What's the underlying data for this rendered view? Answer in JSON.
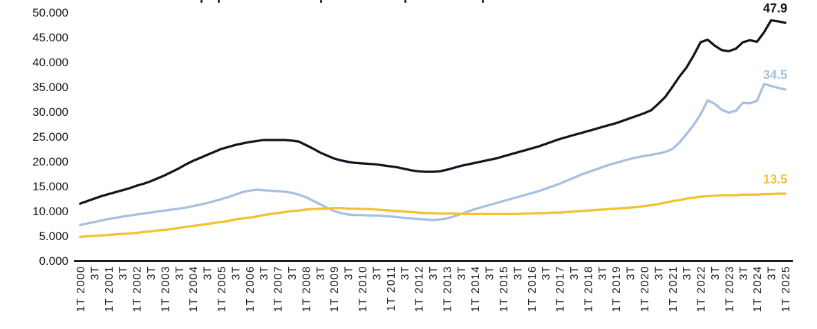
{
  "chart_data": {
    "type": "line",
    "title": "",
    "grid": false,
    "legend": "none",
    "unit_note": "y values in thousands, quarterly points 1T 2000 - 1T 2025",
    "y_axis": {
      "min": 0,
      "max": 50000,
      "tick_step": 5000,
      "tick_labels": [
        "50.000",
        "45.000",
        "40.000",
        "35.000",
        "30.000",
        "25.000",
        "20.000",
        "15.000",
        "10.000",
        "5.000",
        "0.000"
      ]
    },
    "x_axis": {
      "quarters_per_tick": 2,
      "tick_labels": [
        "1T 2000",
        "3T",
        "1T 2001",
        "3T",
        "1T 2002",
        "3T",
        "1T 2003",
        "3T",
        "1T 2004",
        "3T",
        "1T 2005",
        "3T",
        "1T 2006",
        "3T",
        "1T 2007",
        "3T",
        "1T 2008",
        "3T",
        "1T 2009",
        "3T",
        "1T 2010",
        "3T",
        "1T 2011",
        "3T",
        "1T 2012",
        "3T",
        "1T 2013",
        "3T",
        "1T 2014",
        "3T",
        "1T 2015",
        "3T",
        "1T 2016",
        "3T",
        "1T 2017",
        "3T",
        "1T 2018",
        "3T",
        "1T 2019",
        "3T",
        "1T 2020",
        "3T",
        "1T 2021",
        "3T",
        "1T 2022",
        "3T",
        "1T 2023",
        "3T",
        "1T 2024",
        "3T",
        "1T 2025"
      ]
    },
    "series": [
      {
        "name": "dark-navy",
        "color": "#121723",
        "end_label": "47.9",
        "values": [
          11.5,
          12.0,
          12.5,
          13.0,
          13.4,
          13.8,
          14.2,
          14.6,
          15.1,
          15.5,
          16.0,
          16.6,
          17.2,
          17.9,
          18.6,
          19.4,
          20.1,
          20.7,
          21.3,
          21.9,
          22.5,
          22.9,
          23.3,
          23.6,
          23.9,
          24.1,
          24.3,
          24.3,
          24.3,
          24.3,
          24.2,
          24.0,
          23.3,
          22.6,
          21.8,
          21.2,
          20.6,
          20.2,
          19.9,
          19.7,
          19.6,
          19.5,
          19.4,
          19.2,
          19.0,
          18.8,
          18.5,
          18.2,
          18.0,
          17.9,
          17.9,
          18.0,
          18.3,
          18.7,
          19.1,
          19.4,
          19.7,
          20.0,
          20.3,
          20.6,
          21.0,
          21.4,
          21.8,
          22.2,
          22.6,
          23.0,
          23.5,
          24.0,
          24.5,
          24.9,
          25.3,
          25.7,
          26.1,
          26.5,
          26.9,
          27.3,
          27.7,
          28.2,
          28.7,
          29.2,
          29.7,
          30.3,
          31.6,
          33.0,
          35.0,
          37.1,
          38.9,
          41.3,
          44.0,
          44.5,
          43.3,
          42.4,
          42.2,
          42.7,
          44.0,
          44.4,
          44.1,
          46.0,
          48.4,
          48.2,
          47.9
        ]
      },
      {
        "name": "light-blue",
        "color": "#A7C0E2",
        "end_label": "34.5",
        "values": [
          7.2,
          7.5,
          7.8,
          8.1,
          8.4,
          8.6,
          8.9,
          9.1,
          9.3,
          9.5,
          9.7,
          9.9,
          10.1,
          10.3,
          10.5,
          10.7,
          11.0,
          11.3,
          11.6,
          12.0,
          12.4,
          12.8,
          13.3,
          13.8,
          14.1,
          14.3,
          14.2,
          14.1,
          14.0,
          13.9,
          13.7,
          13.3,
          12.8,
          12.1,
          11.4,
          10.7,
          10.0,
          9.6,
          9.3,
          9.2,
          9.2,
          9.1,
          9.1,
          9.0,
          8.9,
          8.8,
          8.6,
          8.5,
          8.4,
          8.3,
          8.2,
          8.3,
          8.5,
          8.9,
          9.4,
          9.9,
          10.4,
          10.8,
          11.2,
          11.6,
          12.0,
          12.4,
          12.8,
          13.2,
          13.6,
          14.0,
          14.5,
          15.0,
          15.5,
          16.1,
          16.7,
          17.3,
          17.8,
          18.3,
          18.8,
          19.3,
          19.7,
          20.1,
          20.5,
          20.8,
          21.1,
          21.3,
          21.6,
          21.9,
          22.5,
          23.8,
          25.5,
          27.3,
          29.5,
          32.3,
          31.6,
          30.4,
          29.8,
          30.2,
          31.8,
          31.7,
          32.2,
          35.6,
          35.2,
          34.8,
          34.5
        ]
      },
      {
        "name": "yellow",
        "color": "#F4C130",
        "end_label": "13.5",
        "values": [
          4.8,
          4.9,
          5.0,
          5.1,
          5.2,
          5.3,
          5.4,
          5.5,
          5.6,
          5.8,
          5.9,
          6.1,
          6.2,
          6.4,
          6.6,
          6.8,
          7.0,
          7.2,
          7.4,
          7.6,
          7.8,
          8.0,
          8.3,
          8.5,
          8.7,
          8.9,
          9.2,
          9.4,
          9.6,
          9.8,
          10.0,
          10.1,
          10.3,
          10.4,
          10.5,
          10.5,
          10.6,
          10.6,
          10.5,
          10.5,
          10.4,
          10.4,
          10.3,
          10.2,
          10.1,
          10.0,
          9.9,
          9.8,
          9.7,
          9.6,
          9.6,
          9.5,
          9.5,
          9.5,
          9.4,
          9.4,
          9.4,
          9.4,
          9.4,
          9.4,
          9.4,
          9.4,
          9.4,
          9.5,
          9.5,
          9.6,
          9.6,
          9.7,
          9.7,
          9.8,
          9.9,
          10.0,
          10.1,
          10.2,
          10.3,
          10.4,
          10.5,
          10.6,
          10.7,
          10.8,
          11.0,
          11.2,
          11.4,
          11.7,
          12.0,
          12.2,
          12.5,
          12.7,
          12.9,
          13.0,
          13.1,
          13.2,
          13.2,
          13.2,
          13.3,
          13.3,
          13.3,
          13.4,
          13.4,
          13.5,
          13.5
        ]
      }
    ]
  },
  "artifacts": {
    "cropped_title_descender_x": [
      290,
      315,
      463,
      585,
      697
    ],
    "axis_color": "#1a1d24",
    "label_color": "#1b1b1b"
  }
}
